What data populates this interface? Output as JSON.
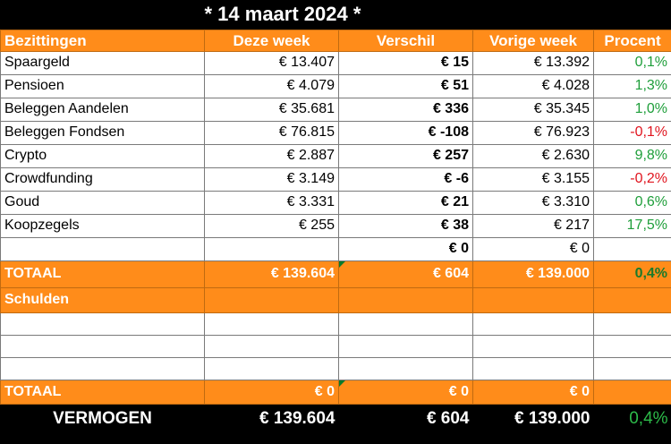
{
  "title": "* 14 maart 2024 *",
  "headers": {
    "col1": "Bezittingen",
    "col2": "Deze week",
    "col3": "Verschil",
    "col4": "Vorige week",
    "col5": "Procent"
  },
  "assets": [
    {
      "name": "Spaargeld",
      "this_week": "€ 13.407",
      "diff": "€ 15",
      "last_week": "€ 13.392",
      "pct": "0,1%",
      "trend": "pos"
    },
    {
      "name": "Pensioen",
      "this_week": "€ 4.079",
      "diff": "€ 51",
      "last_week": "€ 4.028",
      "pct": "1,3%",
      "trend": "pos"
    },
    {
      "name": "Beleggen Aandelen",
      "this_week": "€ 35.681",
      "diff": "€ 336",
      "last_week": "€ 35.345",
      "pct": "1,0%",
      "trend": "pos"
    },
    {
      "name": "Beleggen Fondsen",
      "this_week": "€ 76.815",
      "diff": "€ -108",
      "last_week": "€ 76.923",
      "pct": "-0,1%",
      "trend": "neg"
    },
    {
      "name": "Crypto",
      "this_week": "€ 2.887",
      "diff": "€ 257",
      "last_week": "€ 2.630",
      "pct": "9,8%",
      "trend": "pos"
    },
    {
      "name": "Crowdfunding",
      "this_week": "€ 3.149",
      "diff": "€ -6",
      "last_week": "€ 3.155",
      "pct": "-0,2%",
      "trend": "neg"
    },
    {
      "name": "Goud",
      "this_week": "€ 3.331",
      "diff": "€ 21",
      "last_week": "€ 3.310",
      "pct": "0,6%",
      "trend": "pos"
    },
    {
      "name": "Koopzegels",
      "this_week": "€ 255",
      "diff": "€ 38",
      "last_week": "€ 217",
      "pct": "17,5%",
      "trend": "pos"
    },
    {
      "name": "",
      "this_week": "",
      "diff": "€ 0",
      "last_week": "€ 0",
      "pct": "",
      "trend": ""
    }
  ],
  "assets_total": {
    "label": "TOTAAL",
    "this_week": "€ 139.604",
    "diff": "€ 604",
    "last_week": "€ 139.000",
    "pct": "0,4%"
  },
  "debts_header": "Schulden",
  "debts_total": {
    "label": "TOTAAL",
    "this_week": "€ 0",
    "diff": "€ 0",
    "last_week": "€ 0",
    "pct": ""
  },
  "net_worth": {
    "label": "VERMOGEN",
    "this_week": "€ 139.604",
    "diff": "€ 604",
    "last_week": "€ 139.000",
    "pct": "0,4%"
  },
  "colors": {
    "header_orange": "#FF8C1A",
    "positive": "#1e9e3a",
    "negative": "#e0141e"
  }
}
